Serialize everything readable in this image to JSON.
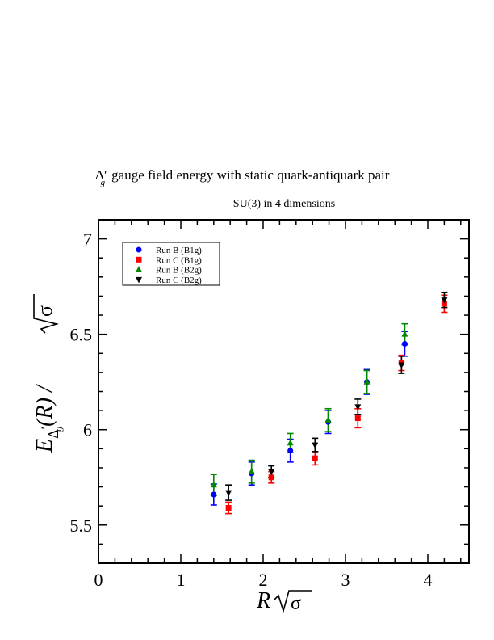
{
  "chart_data": {
    "type": "scatter",
    "title": "gauge field energy with static quark-antiquark pair",
    "title_symbol": "Δ",
    "title_symbol_sub": "g",
    "title_symbol_prime": "′",
    "subtitle": "SU(3) in 4 dimensions",
    "xlabel": {
      "main": "R",
      "sqrt": "σ"
    },
    "ylabel": {
      "E": "E",
      "sub": "Δ",
      "subsub": "g",
      "prime": "′",
      "arg": "(R) / ",
      "sqrt": "σ"
    },
    "xlim": [
      0,
      4.5
    ],
    "ylim": [
      5.3,
      7.1
    ],
    "x_ticks": [
      {
        "v": 0,
        "label": "0"
      },
      {
        "v": 1,
        "label": "1"
      },
      {
        "v": 2,
        "label": "2"
      },
      {
        "v": 3,
        "label": "3"
      },
      {
        "v": 4,
        "label": "4"
      }
    ],
    "y_ticks": [
      {
        "v": 5.5,
        "label": "5.5"
      },
      {
        "v": 6,
        "label": "6"
      },
      {
        "v": 6.5,
        "label": "6.5"
      },
      {
        "v": 7,
        "label": "7"
      }
    ],
    "x_minor_step": 0.2,
    "y_minor_step": 0.1,
    "legend_position": "top-left",
    "series": [
      {
        "name": "Run B (B1g)",
        "color": "#0000ff",
        "marker": "circle",
        "points": [
          {
            "x": 1.4,
            "y": 5.66,
            "err": 0.055
          },
          {
            "x": 1.86,
            "y": 5.77,
            "err": 0.06
          },
          {
            "x": 2.33,
            "y": 5.89,
            "err": 0.06
          },
          {
            "x": 2.79,
            "y": 6.04,
            "err": 0.06
          },
          {
            "x": 3.26,
            "y": 6.25,
            "err": 0.065
          },
          {
            "x": 3.72,
            "y": 6.45,
            "err": 0.065
          }
        ]
      },
      {
        "name": "Run C (B1g)",
        "color": "#ff0000",
        "marker": "square",
        "points": [
          {
            "x": 1.58,
            "y": 5.59,
            "err": 0.03
          },
          {
            "x": 2.1,
            "y": 5.75,
            "err": 0.03
          },
          {
            "x": 2.63,
            "y": 5.85,
            "err": 0.035
          },
          {
            "x": 3.15,
            "y": 6.06,
            "err": 0.05
          },
          {
            "x": 3.68,
            "y": 6.35,
            "err": 0.04
          },
          {
            "x": 4.2,
            "y": 6.66,
            "err": 0.045
          }
        ]
      },
      {
        "name": "Run B (B2g)",
        "color": "#008800",
        "marker": "triangle",
        "points": [
          {
            "x": 1.4,
            "y": 5.71,
            "err": 0.055
          },
          {
            "x": 1.86,
            "y": 5.78,
            "err": 0.06
          },
          {
            "x": 2.33,
            "y": 5.93,
            "err": 0.05
          },
          {
            "x": 2.79,
            "y": 6.05,
            "err": 0.06
          },
          {
            "x": 3.26,
            "y": 6.25,
            "err": 0.06
          },
          {
            "x": 3.72,
            "y": 6.5,
            "err": 0.055
          }
        ]
      },
      {
        "name": "Run C (B2g)",
        "color": "#000000",
        "marker": "triangle-down",
        "points": [
          {
            "x": 1.58,
            "y": 5.67,
            "err": 0.04
          },
          {
            "x": 2.1,
            "y": 5.78,
            "err": 0.03
          },
          {
            "x": 2.63,
            "y": 5.92,
            "err": 0.035
          },
          {
            "x": 3.15,
            "y": 6.12,
            "err": 0.04
          },
          {
            "x": 3.68,
            "y": 6.34,
            "err": 0.045
          },
          {
            "x": 4.2,
            "y": 6.68,
            "err": 0.04
          }
        ]
      }
    ]
  }
}
